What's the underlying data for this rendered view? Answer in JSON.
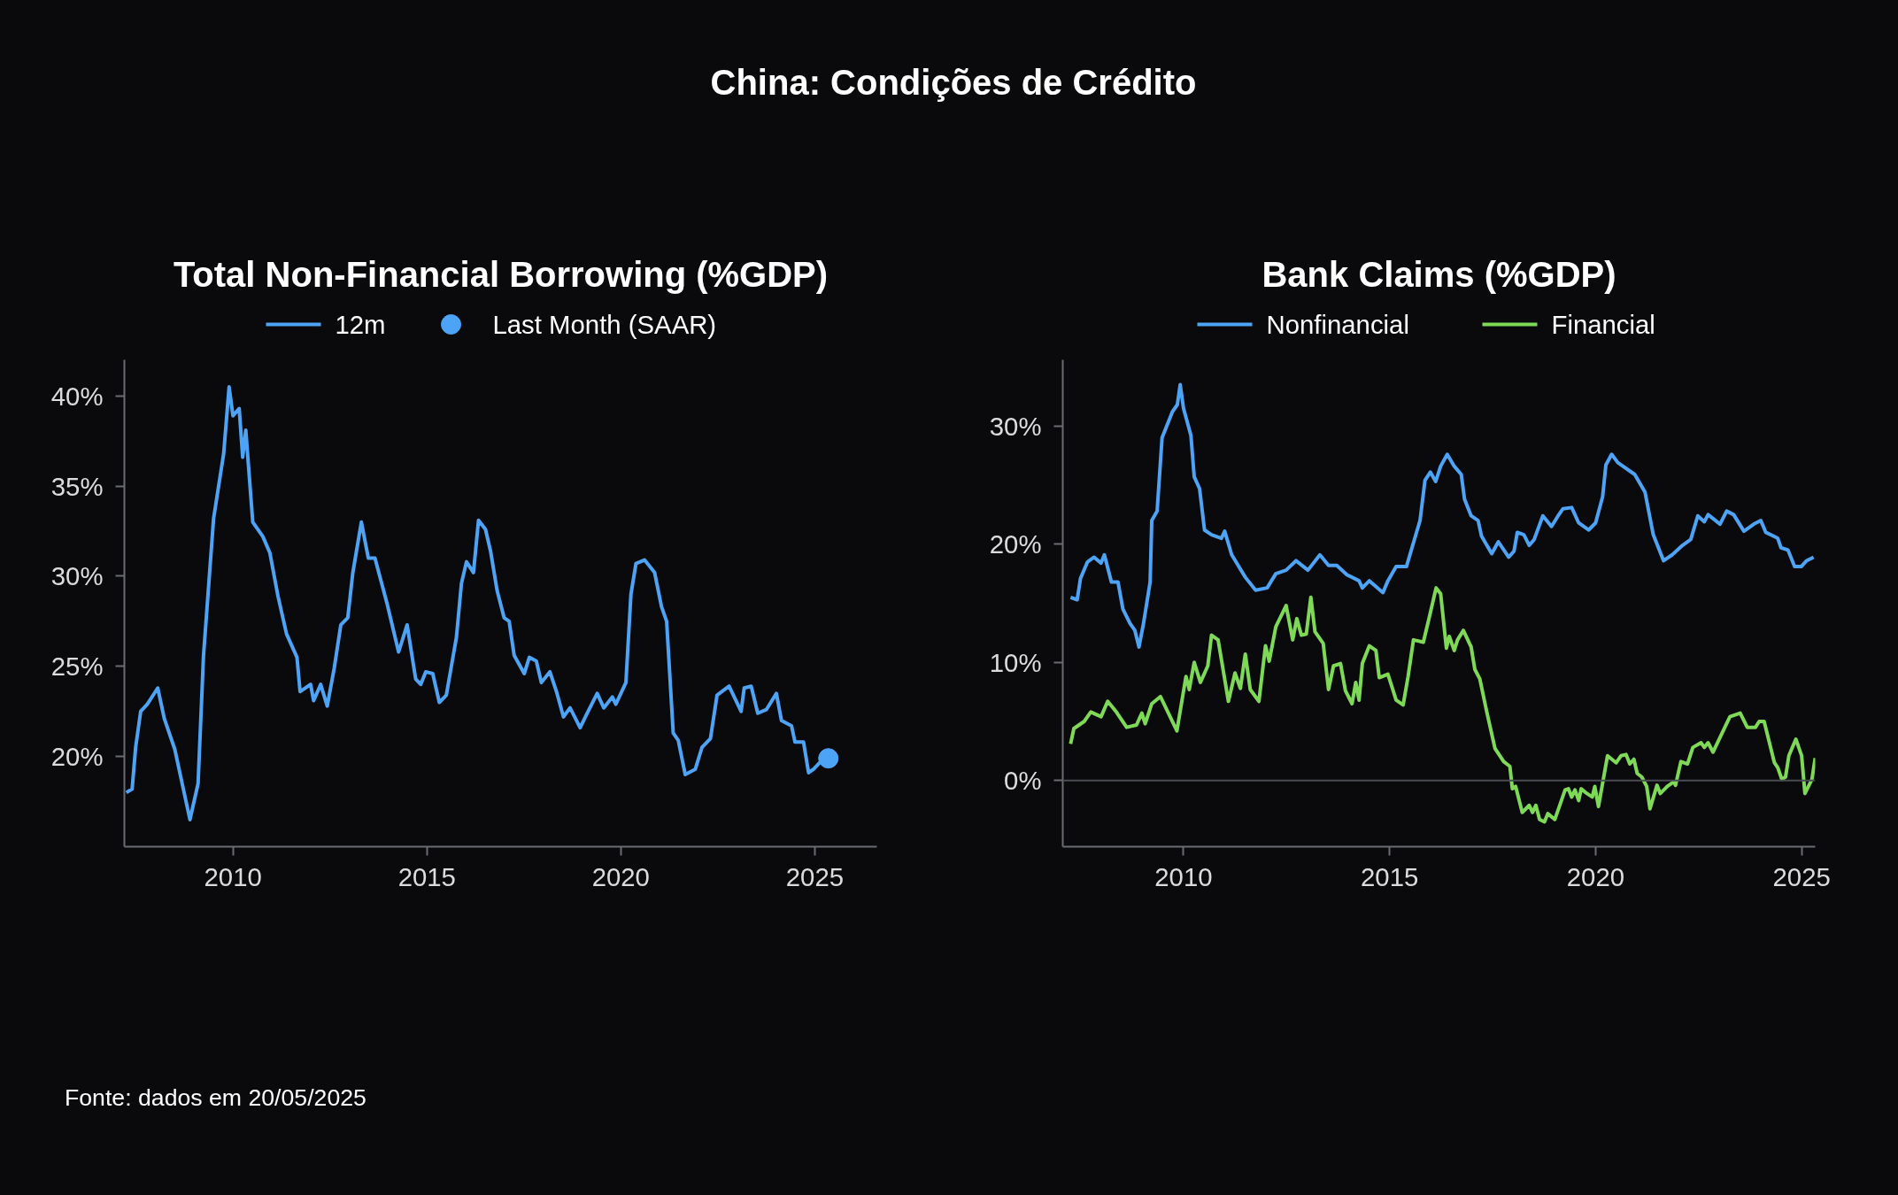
{
  "chart_data": [
    {
      "type": "line",
      "title": "Total Non-Financial Borrowing (%GDP)",
      "annotations": [
        "China: Condições de Crédito",
        "Fonte: dados em 20/05/2025"
      ],
      "legend": "top",
      "grid": false,
      "xlim": [
        2007.2,
        2026.6
      ],
      "xticks": [
        2010,
        2015,
        2020,
        2025
      ],
      "ylim": [
        15,
        42
      ],
      "yticks": [
        {
          "value": 20,
          "label": "20%"
        },
        {
          "value": 25,
          "label": "25%"
        },
        {
          "value": 30,
          "label": "30%"
        },
        {
          "value": 35,
          "label": "35%"
        },
        {
          "value": 40,
          "label": "40%"
        }
      ],
      "series": [
        {
          "name": "12m",
          "color": "#4da3f5",
          "x": [
            2007.25,
            2007.4,
            2007.49,
            2007.62,
            2007.79,
            2008.06,
            2008.23,
            2008.5,
            2008.67,
            2008.89,
            2009.1,
            2009.24,
            2009.5,
            2009.76,
            2009.9,
            2010.0,
            2010.16,
            2010.25,
            2010.33,
            2010.51,
            2010.77,
            2010.95,
            2011.16,
            2011.38,
            2011.65,
            2011.73,
            2012.0,
            2012.08,
            2012.26,
            2012.43,
            2012.61,
            2012.78,
            2012.96,
            2013.09,
            2013.31,
            2013.49,
            2013.66,
            2013.97,
            2014.27,
            2014.49,
            2014.71,
            2014.84,
            2014.97,
            2015.15,
            2015.32,
            2015.5,
            2015.76,
            2015.89,
            2016.02,
            2016.2,
            2016.33,
            2016.51,
            2016.64,
            2016.81,
            2016.99,
            2017.12,
            2017.25,
            2017.51,
            2017.64,
            2017.82,
            2017.95,
            2018.17,
            2018.34,
            2018.52,
            2018.69,
            2018.95,
            2019.13,
            2019.39,
            2019.56,
            2019.78,
            2019.87,
            2020.13,
            2020.26,
            2020.39,
            2020.61,
            2020.87,
            2021.05,
            2021.18,
            2021.35,
            2021.48,
            2021.66,
            2021.92,
            2022.09,
            2022.31,
            2022.48,
            2022.79,
            2023.1,
            2023.18,
            2023.36,
            2023.53,
            2023.75,
            2024.01,
            2024.14,
            2024.4,
            2024.49,
            2024.71,
            2024.84,
            2024.97,
            2025.19
          ],
          "values": [
            18.0,
            18.2,
            20.5,
            22.5,
            22.9,
            23.8,
            22.1,
            20.4,
            18.7,
            16.5,
            18.5,
            25.6,
            33.2,
            36.8,
            40.5,
            38.9,
            39.3,
            36.6,
            38.1,
            33.0,
            32.2,
            31.3,
            28.9,
            26.8,
            25.5,
            23.6,
            24.0,
            23.1,
            24.0,
            22.8,
            24.9,
            27.3,
            27.7,
            30.2,
            33.0,
            31.0,
            31.0,
            28.5,
            25.8,
            27.3,
            24.3,
            24.0,
            24.7,
            24.6,
            23.0,
            23.4,
            26.6,
            29.6,
            30.8,
            30.2,
            33.1,
            32.6,
            31.4,
            29.2,
            27.7,
            27.5,
            25.6,
            24.6,
            25.5,
            25.3,
            24.1,
            24.7,
            23.6,
            22.2,
            22.7,
            21.6,
            22.4,
            23.5,
            22.7,
            23.3,
            22.9,
            24.1,
            29.0,
            30.7,
            30.9,
            30.2,
            28.3,
            27.5,
            21.3,
            20.9,
            19.0,
            19.3,
            20.5,
            21.0,
            23.4,
            23.9,
            22.5,
            23.8,
            23.9,
            22.4,
            22.6,
            23.5,
            22.0,
            21.7,
            20.8,
            20.8,
            19.1,
            19.3,
            19.8
          ]
        },
        {
          "name": "Last Month (SAAR)",
          "type": "scatter",
          "marker": "circle",
          "color": "#4da3f5",
          "x": [
            2025.35
          ],
          "values": [
            19.9
          ]
        }
      ]
    },
    {
      "type": "line",
      "title": "Bank Claims (%GDP)",
      "legend": "top",
      "grid": false,
      "xlim": [
        2007.07,
        2025.33
      ],
      "xticks": [
        2010,
        2015,
        2020,
        2025
      ],
      "ylim": [
        -5.6,
        35.6
      ],
      "yticks": [
        {
          "value": 0,
          "label": "0%"
        },
        {
          "value": 10,
          "label": "10%"
        },
        {
          "value": 20,
          "label": "20%"
        },
        {
          "value": 30,
          "label": "30%"
        }
      ],
      "ref_lines": [
        {
          "axis": "y",
          "value": 0,
          "label": null,
          "color": "#4a4c52"
        }
      ],
      "series": [
        {
          "name": "Nonfinancial",
          "color": "#4da3f5",
          "x": [
            2007.26,
            2007.42,
            2007.5,
            2007.67,
            2007.83,
            2008.0,
            2008.08,
            2008.25,
            2008.41,
            2008.53,
            2008.7,
            2008.82,
            2008.92,
            2009.03,
            2009.19,
            2009.23,
            2009.36,
            2009.48,
            2009.73,
            2009.85,
            2009.92,
            2010.0,
            2010.18,
            2010.26,
            2010.39,
            2010.51,
            2010.68,
            2010.92,
            2011.0,
            2011.17,
            2011.5,
            2011.75,
            2012.03,
            2012.24,
            2012.49,
            2012.73,
            2013.02,
            2013.31,
            2013.52,
            2013.72,
            2013.97,
            2014.26,
            2014.34,
            2014.51,
            2014.84,
            2014.96,
            2015.16,
            2015.41,
            2015.74,
            2015.86,
            2015.99,
            2016.12,
            2016.24,
            2016.4,
            2016.57,
            2016.74,
            2016.82,
            2016.98,
            2017.15,
            2017.23,
            2017.48,
            2017.64,
            2017.89,
            2018.02,
            2018.1,
            2018.26,
            2018.39,
            2018.51,
            2018.72,
            2018.93,
            2019.09,
            2019.21,
            2019.42,
            2019.59,
            2019.83,
            2020.0,
            2020.17,
            2020.25,
            2020.39,
            2020.54,
            2020.95,
            2021.2,
            2021.4,
            2021.65,
            2021.86,
            2022.11,
            2022.31,
            2022.48,
            2022.64,
            2022.73,
            2023.02,
            2023.18,
            2023.35,
            2023.6,
            2023.84,
            2024.01,
            2024.13,
            2024.42,
            2024.5,
            2024.67,
            2024.83,
            2024.99,
            2025.12,
            2025.29
          ],
          "values": [
            15.5,
            15.3,
            17.1,
            18.5,
            18.9,
            18.4,
            19.1,
            16.8,
            16.8,
            14.5,
            13.3,
            12.7,
            11.3,
            13.3,
            16.8,
            22.0,
            22.8,
            29.0,
            31.2,
            31.8,
            33.5,
            31.5,
            29.2,
            25.7,
            24.7,
            21.2,
            20.8,
            20.5,
            21.1,
            19.1,
            17.2,
            16.1,
            16.3,
            17.5,
            17.8,
            18.6,
            17.8,
            19.1,
            18.2,
            18.2,
            17.4,
            16.9,
            16.3,
            16.9,
            15.9,
            16.9,
            18.1,
            18.1,
            22.0,
            25.4,
            26.1,
            25.3,
            26.6,
            27.6,
            26.6,
            25.9,
            23.8,
            22.4,
            22.0,
            20.7,
            19.2,
            20.2,
            18.9,
            19.4,
            21.0,
            20.8,
            19.9,
            20.4,
            22.4,
            21.5,
            22.4,
            23.0,
            23.1,
            21.8,
            21.2,
            21.8,
            24.0,
            26.7,
            27.6,
            26.9,
            25.9,
            24.4,
            20.8,
            18.6,
            19.1,
            19.9,
            20.4,
            22.4,
            21.9,
            22.5,
            21.7,
            22.8,
            22.5,
            21.1,
            21.7,
            22.0,
            21.0,
            20.5,
            19.7,
            19.5,
            18.1,
            18.1,
            18.6,
            18.9
          ]
        },
        {
          "name": "Financial",
          "color": "#7ed957",
          "x": [
            2007.26,
            2007.34,
            2007.59,
            2007.75,
            2008.0,
            2008.16,
            2008.37,
            2008.62,
            2008.86,
            2008.99,
            2009.07,
            2009.23,
            2009.44,
            2009.84,
            2010.06,
            2010.14,
            2010.26,
            2010.41,
            2010.59,
            2010.68,
            2010.84,
            2011.09,
            2011.25,
            2011.38,
            2011.5,
            2011.62,
            2011.83,
            2011.99,
            2012.08,
            2012.24,
            2012.49,
            2012.65,
            2012.75,
            2012.86,
            2012.98,
            2013.09,
            2013.19,
            2013.39,
            2013.52,
            2013.64,
            2013.81,
            2013.93,
            2014.09,
            2014.18,
            2014.26,
            2014.34,
            2014.51,
            2014.67,
            2014.75,
            2014.96,
            2015.16,
            2015.33,
            2015.45,
            2015.58,
            2015.82,
            2015.95,
            2016.13,
            2016.24,
            2016.38,
            2016.45,
            2016.57,
            2016.65,
            2016.79,
            2016.98,
            2017.07,
            2017.19,
            2017.36,
            2017.56,
            2017.77,
            2017.92,
            2017.98,
            2018.06,
            2018.22,
            2018.39,
            2018.47,
            2018.55,
            2018.64,
            2018.76,
            2018.84,
            2019.01,
            2019.26,
            2019.34,
            2019.42,
            2019.5,
            2019.59,
            2019.65,
            2019.79,
            2019.92,
            2019.98,
            2020.07,
            2020.29,
            2020.5,
            2020.62,
            2020.74,
            2020.83,
            2020.93,
            2021.01,
            2021.12,
            2021.24,
            2021.32,
            2021.49,
            2021.57,
            2021.74,
            2021.9,
            2021.94,
            2022.07,
            2022.23,
            2022.36,
            2022.56,
            2022.64,
            2022.73,
            2022.85,
            2023.26,
            2023.51,
            2023.68,
            2023.88,
            2023.97,
            2024.09,
            2024.34,
            2024.42,
            2024.52,
            2024.61,
            2024.69,
            2024.86,
            2025.0,
            2025.08,
            2025.25,
            2025.33
          ],
          "values": [
            3.1,
            4.4,
            5.0,
            5.8,
            5.4,
            6.7,
            5.8,
            4.5,
            4.7,
            5.7,
            4.8,
            6.5,
            7.1,
            4.2,
            8.8,
            7.7,
            10.0,
            8.3,
            9.7,
            12.3,
            11.9,
            6.7,
            9.1,
            7.8,
            10.7,
            7.7,
            6.7,
            11.4,
            10.1,
            13.0,
            14.8,
            11.9,
            13.7,
            12.3,
            12.4,
            15.5,
            12.6,
            11.6,
            7.7,
            9.7,
            9.9,
            7.6,
            6.5,
            8.3,
            6.8,
            9.9,
            11.4,
            11.0,
            8.7,
            9.0,
            6.8,
            6.4,
            8.8,
            11.9,
            11.7,
            13.6,
            16.3,
            15.8,
            11.2,
            12.2,
            11.0,
            11.9,
            12.7,
            11.3,
            9.4,
            8.6,
            5.8,
            2.7,
            1.6,
            1.2,
            -0.7,
            -0.5,
            -2.7,
            -2.1,
            -2.7,
            -2.1,
            -3.3,
            -3.5,
            -2.8,
            -3.3,
            -0.8,
            -0.7,
            -1.4,
            -0.8,
            -1.7,
            -0.7,
            -1.1,
            -1.4,
            -0.5,
            -2.2,
            2.1,
            1.5,
            2.1,
            2.2,
            1.4,
            1.8,
            0.6,
            0.3,
            -0.5,
            -2.4,
            -0.4,
            -1.1,
            -0.5,
            -0.1,
            -0.4,
            1.6,
            1.4,
            2.8,
            3.2,
            2.8,
            3.2,
            2.4,
            5.4,
            5.7,
            4.5,
            4.5,
            5.0,
            5.0,
            1.5,
            1.1,
            0.1,
            0.3,
            2.1,
            3.5,
            2.1,
            -1.1,
            0.1,
            1.9
          ]
        }
      ]
    }
  ]
}
